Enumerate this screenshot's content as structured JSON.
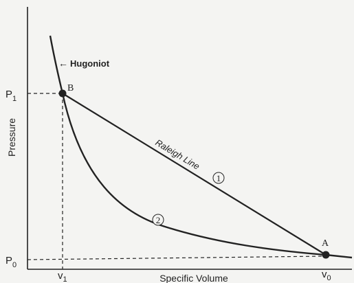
{
  "axes": {
    "y_label": "Pressure",
    "x_label": "Specific Volume",
    "y_ticks": [
      {
        "base": "P",
        "sub": "1"
      },
      {
        "base": "P",
        "sub": "0"
      }
    ],
    "x_ticks": [
      {
        "base": "v",
        "sub": "1"
      },
      {
        "base": "v",
        "sub": "0"
      }
    ]
  },
  "curves": {
    "hugoniot_label": "Hugoniot",
    "hugoniot_arrow": "←",
    "raleigh_label": "Raleigh Line"
  },
  "points": {
    "b_label": "B",
    "a_label": "A"
  },
  "markers": {
    "path_one": "1",
    "path_two": "2"
  },
  "colors": {
    "ink": "#222222",
    "background": "#f4f4f2"
  }
}
